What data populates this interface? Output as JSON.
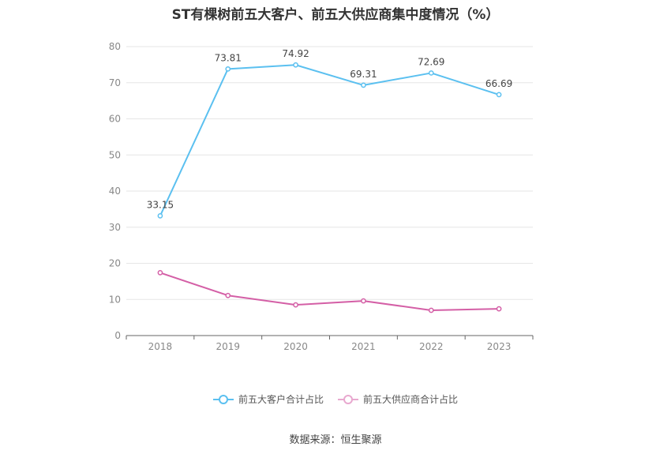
{
  "chart_data": {
    "type": "line",
    "title": "ST有棵树前五大客户、前五大供应商集中度情况（%）",
    "categories": [
      "2018",
      "2019",
      "2020",
      "2021",
      "2022",
      "2023"
    ],
    "ylim": [
      0,
      80
    ],
    "yticks": [
      0,
      10,
      20,
      30,
      40,
      50,
      60,
      70,
      80
    ],
    "grid": true,
    "legend_position": "bottom",
    "series": [
      {
        "name": "前五大客户合计占比",
        "color": "#5bc0f0",
        "values": [
          33.15,
          73.81,
          74.92,
          69.31,
          72.69,
          66.69
        ],
        "data_labels": [
          "33.15",
          "73.81",
          "74.92",
          "69.31",
          "72.69",
          "66.69"
        ]
      },
      {
        "name": "前五大供应商合计占比",
        "color": "#d45fa6",
        "values": [
          17.4,
          11.1,
          8.5,
          9.6,
          7.0,
          7.4
        ]
      }
    ]
  },
  "source": "数据来源：恒生聚源"
}
